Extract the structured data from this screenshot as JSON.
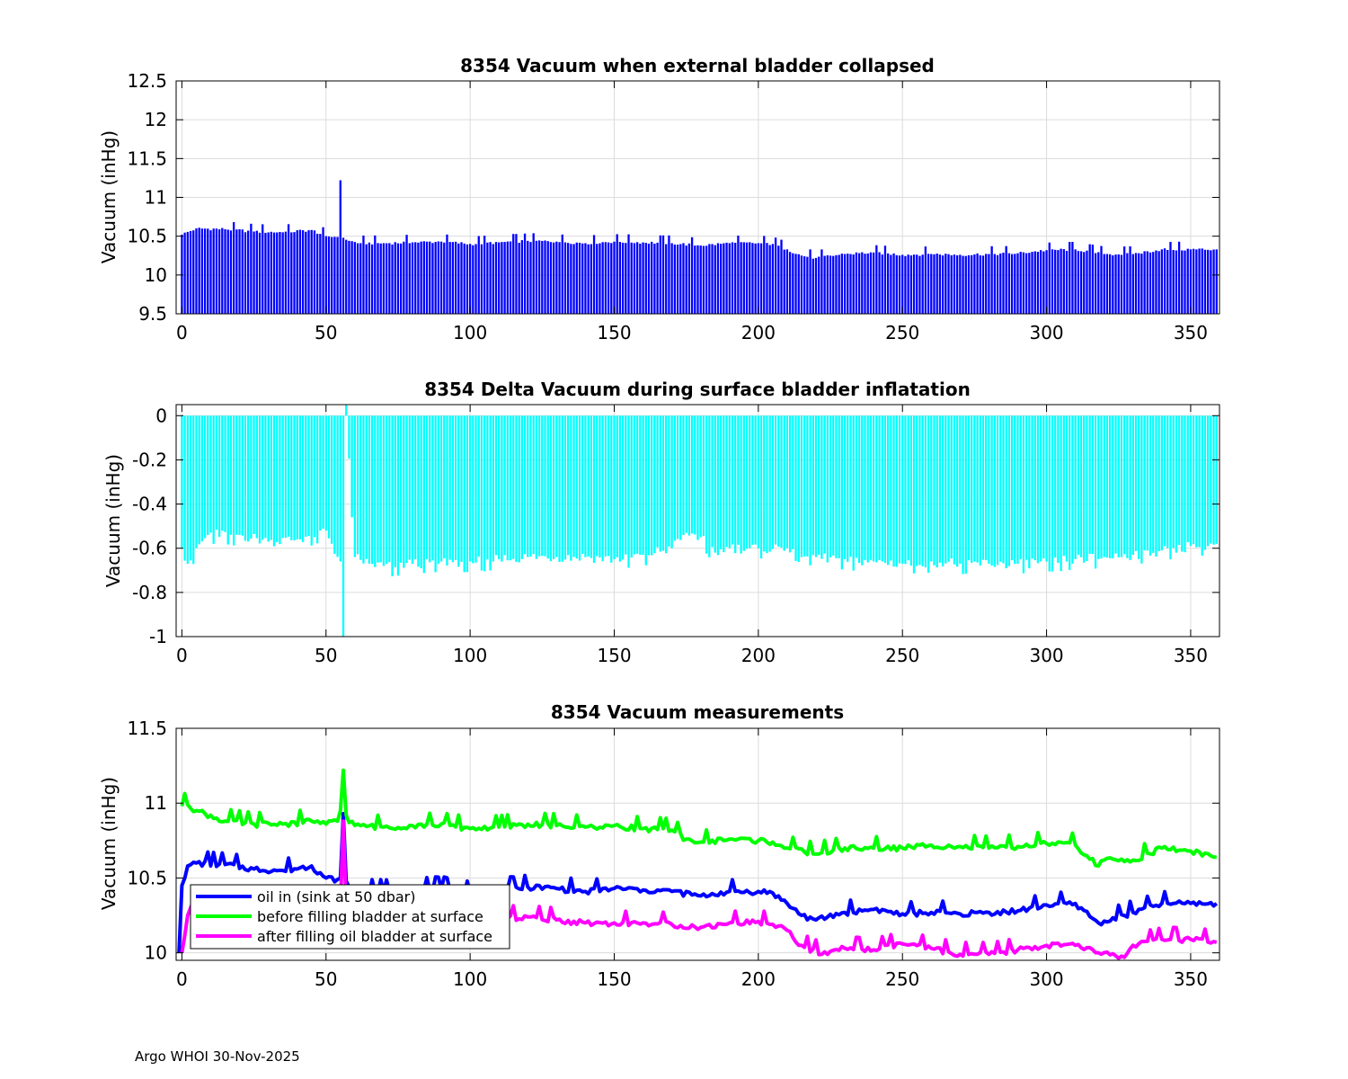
{
  "footer": "Argo WHOI 30-Nov-2025",
  "colors": {
    "blue": "#0000ff",
    "cyan": "#00ffff",
    "green": "#00ff00",
    "magenta": "#ff00ff",
    "grid": "#dcdcdc"
  },
  "chart_data": [
    {
      "type": "bar",
      "title": "8354 Vacuum when external bladder collapsed",
      "ylabel": "Vacuum (inHg)",
      "xlabel": "",
      "xlim": [
        -2,
        360
      ],
      "ylim": [
        9.5,
        12.5
      ],
      "xticks": [
        "0",
        "50",
        "100",
        "150",
        "200",
        "250",
        "300",
        "350"
      ],
      "yticks": [
        "9.5",
        "10",
        "10.5",
        "11",
        "11.5",
        "12",
        "12.5"
      ],
      "grid": true,
      "color": "#0000ff",
      "keypoints_x": [
        0,
        5,
        15,
        25,
        35,
        45,
        50,
        54,
        55,
        56,
        58,
        62,
        70,
        80,
        90,
        100,
        110,
        120,
        130,
        140,
        150,
        160,
        170,
        180,
        190,
        200,
        205,
        210,
        215,
        220,
        230,
        240,
        250,
        260,
        270,
        280,
        290,
        300,
        310,
        320,
        330,
        340,
        350,
        359
      ],
      "keypoints_y": [
        10.52,
        10.6,
        10.59,
        10.56,
        10.55,
        10.58,
        10.5,
        10.49,
        11.22,
        10.48,
        10.44,
        10.41,
        10.41,
        10.42,
        10.43,
        10.4,
        10.42,
        10.44,
        10.43,
        10.41,
        10.43,
        10.42,
        10.41,
        10.38,
        10.41,
        10.41,
        10.4,
        10.33,
        10.25,
        10.22,
        10.27,
        10.29,
        10.26,
        10.27,
        10.26,
        10.27,
        10.28,
        10.32,
        10.33,
        10.27,
        10.27,
        10.33,
        10.33,
        10.33
      ],
      "n_points": 360
    },
    {
      "type": "bar",
      "title": "8354 Delta Vacuum during surface bladder inflatation",
      "ylabel": "Vacuum (inHg)",
      "xlabel": "",
      "xlim": [
        -2,
        360
      ],
      "ylim": [
        -1,
        0.05
      ],
      "xticks": [
        "0",
        "50",
        "100",
        "150",
        "200",
        "250",
        "300",
        "350"
      ],
      "yticks": [
        "-1",
        "-0.8",
        "-0.6",
        "-0.4",
        "-0.2",
        "0"
      ],
      "grid": true,
      "color": "#00ffff",
      "keypoints_x": [
        0,
        2,
        5,
        10,
        20,
        30,
        40,
        50,
        52,
        55,
        56,
        57,
        60,
        65,
        70,
        80,
        90,
        100,
        110,
        120,
        130,
        140,
        150,
        160,
        170,
        175,
        180,
        185,
        190,
        200,
        210,
        220,
        230,
        240,
        250,
        260,
        270,
        280,
        290,
        300,
        310,
        320,
        330,
        340,
        350,
        359
      ],
      "keypoints_y": [
        -0.6,
        -0.67,
        -0.6,
        -0.53,
        -0.54,
        -0.57,
        -0.56,
        -0.52,
        -0.58,
        -0.66,
        -1.0,
        0.05,
        -0.64,
        -0.67,
        -0.68,
        -0.67,
        -0.66,
        -0.66,
        -0.65,
        -0.64,
        -0.64,
        -0.64,
        -0.65,
        -0.63,
        -0.6,
        -0.53,
        -0.55,
        -0.62,
        -0.6,
        -0.6,
        -0.6,
        -0.64,
        -0.65,
        -0.66,
        -0.67,
        -0.66,
        -0.67,
        -0.67,
        -0.67,
        -0.66,
        -0.65,
        -0.64,
        -0.63,
        -0.61,
        -0.59,
        -0.58
      ],
      "n_points": 360
    },
    {
      "type": "line",
      "title": "8354 Vacuum measurements",
      "ylabel": "Vacuum (inHg)",
      "xlabel": "",
      "xlim": [
        -2,
        360
      ],
      "ylim": [
        9.95,
        11.5
      ],
      "xticks": [
        "0",
        "50",
        "100",
        "150",
        "200",
        "250",
        "300",
        "350"
      ],
      "yticks": [
        "10",
        "10.5",
        "11",
        "11.5"
      ],
      "grid": true,
      "legend_position": "lower-left",
      "series": [
        {
          "name": "oil in (sink at 50 dbar)",
          "color": "#0000ff",
          "x": [
            -1,
            0,
            2,
            5,
            15,
            25,
            35,
            45,
            50,
            54,
            55,
            56,
            57,
            58,
            62,
            70,
            80,
            90,
            100,
            110,
            120,
            130,
            140,
            150,
            160,
            170,
            180,
            190,
            200,
            205,
            210,
            215,
            220,
            230,
            240,
            250,
            260,
            270,
            280,
            290,
            300,
            310,
            318,
            330,
            340,
            350,
            359
          ],
          "y": [
            10.0,
            10.45,
            10.58,
            10.6,
            10.59,
            10.56,
            10.55,
            10.58,
            10.5,
            10.49,
            10.5,
            10.93,
            10.48,
            10.44,
            10.41,
            10.41,
            10.42,
            10.43,
            10.4,
            10.42,
            10.44,
            10.43,
            10.41,
            10.43,
            10.42,
            10.41,
            10.38,
            10.41,
            10.41,
            10.4,
            10.33,
            10.25,
            10.22,
            10.27,
            10.29,
            10.26,
            10.27,
            10.26,
            10.27,
            10.28,
            10.32,
            10.33,
            10.2,
            10.27,
            10.33,
            10.33,
            10.33
          ]
        },
        {
          "name": "before filling bladder at surface",
          "color": "#00ff00",
          "x": [
            0,
            2,
            5,
            15,
            25,
            35,
            45,
            50,
            54,
            55,
            56,
            57,
            58,
            62,
            70,
            80,
            90,
            100,
            110,
            120,
            130,
            140,
            150,
            160,
            170,
            175,
            180,
            190,
            200,
            205,
            210,
            220,
            230,
            240,
            250,
            260,
            270,
            280,
            290,
            300,
            310,
            318,
            320,
            330,
            340,
            350,
            359
          ],
          "y": [
            10.98,
            10.99,
            10.95,
            10.88,
            10.86,
            10.86,
            10.88,
            10.86,
            10.88,
            10.95,
            11.22,
            10.92,
            10.87,
            10.85,
            10.84,
            10.85,
            10.86,
            10.83,
            10.84,
            10.86,
            10.85,
            10.84,
            10.85,
            10.83,
            10.82,
            10.76,
            10.74,
            10.76,
            10.75,
            10.74,
            10.7,
            10.66,
            10.7,
            10.7,
            10.7,
            10.72,
            10.71,
            10.7,
            10.71,
            10.73,
            10.72,
            10.58,
            10.62,
            10.62,
            10.7,
            10.68,
            10.64
          ]
        },
        {
          "name": "after filling oil bladder at surface",
          "color": "#ff00ff",
          "x": [
            0,
            2,
            4,
            6,
            10,
            20,
            30,
            40,
            50,
            54,
            55,
            56,
            57,
            58,
            62,
            70,
            80,
            90,
            100,
            110,
            120,
            130,
            140,
            150,
            160,
            170,
            180,
            190,
            200,
            205,
            210,
            215,
            222,
            225,
            230,
            240,
            250,
            260,
            270,
            280,
            290,
            300,
            310,
            318,
            327,
            330,
            340,
            350,
            359
          ],
          "y": [
            10.0,
            10.25,
            10.35,
            10.38,
            10.37,
            10.33,
            10.32,
            10.33,
            10.28,
            10.28,
            10.3,
            10.88,
            10.3,
            10.27,
            10.26,
            10.25,
            10.25,
            10.24,
            10.24,
            10.23,
            10.24,
            10.22,
            10.2,
            10.2,
            10.2,
            10.19,
            10.17,
            10.2,
            10.21,
            10.19,
            10.15,
            10.05,
            9.99,
            10.01,
            10.03,
            10.02,
            10.06,
            10.03,
            9.99,
            9.99,
            10.02,
            10.05,
            10.05,
            10.0,
            9.97,
            10.05,
            10.09,
            10.09,
            10.07
          ]
        }
      ]
    }
  ]
}
